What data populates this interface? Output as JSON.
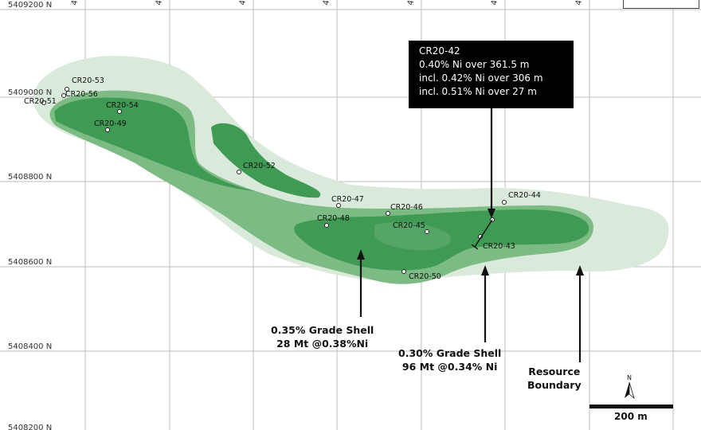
{
  "map": {
    "northings": [
      {
        "label": "5409200 N"
      },
      {
        "label": "5409000 N"
      },
      {
        "label": "5408800 N"
      },
      {
        "label": "5408600 N"
      },
      {
        "label": "5408400 N"
      },
      {
        "label": "5408200 N"
      }
    ],
    "eastings": [
      {
        "label": "4"
      },
      {
        "label": "4"
      },
      {
        "label": "4"
      },
      {
        "label": "4"
      },
      {
        "label": "4"
      },
      {
        "label": "4"
      },
      {
        "label": "4"
      }
    ],
    "drill_holes": [
      {
        "id": "CR20-53"
      },
      {
        "id": "CR20-56"
      },
      {
        "id": "CR20-51"
      },
      {
        "id": "CR20-54"
      },
      {
        "id": "CR20-49"
      },
      {
        "id": "CR20-52"
      },
      {
        "id": "CR20-47"
      },
      {
        "id": "CR20-48"
      },
      {
        "id": "CR20-46"
      },
      {
        "id": "CR20-45"
      },
      {
        "id": "CR20-44"
      },
      {
        "id": "CR20-43"
      },
      {
        "id": "CR20-50"
      }
    ],
    "colors": {
      "resource_boundary": "#d9eadb",
      "grade_shell_030": "#7dbb85",
      "grade_shell_035": "#3f9a54",
      "callout_bg": "#000000"
    }
  },
  "callout": {
    "hole": "CR20-42",
    "line1": "0.40% Ni over 361.5 m",
    "line2": "incl. 0.42% Ni over 306 m",
    "line3": "incl. 0.51% Ni over 27 m"
  },
  "annotations": {
    "shell_035": {
      "line1": "0.35% Grade Shell",
      "line2": "28 Mt @0.38%Ni"
    },
    "shell_030": {
      "line1": "0.30% Grade Shell",
      "line2": "96 Mt @0.34% Ni"
    },
    "boundary": {
      "line1": "Resource",
      "line2": "Boundary"
    }
  },
  "north_arrow": {
    "label": "N"
  },
  "scale_bar": {
    "label": "200 m",
    "length_m": 200
  }
}
